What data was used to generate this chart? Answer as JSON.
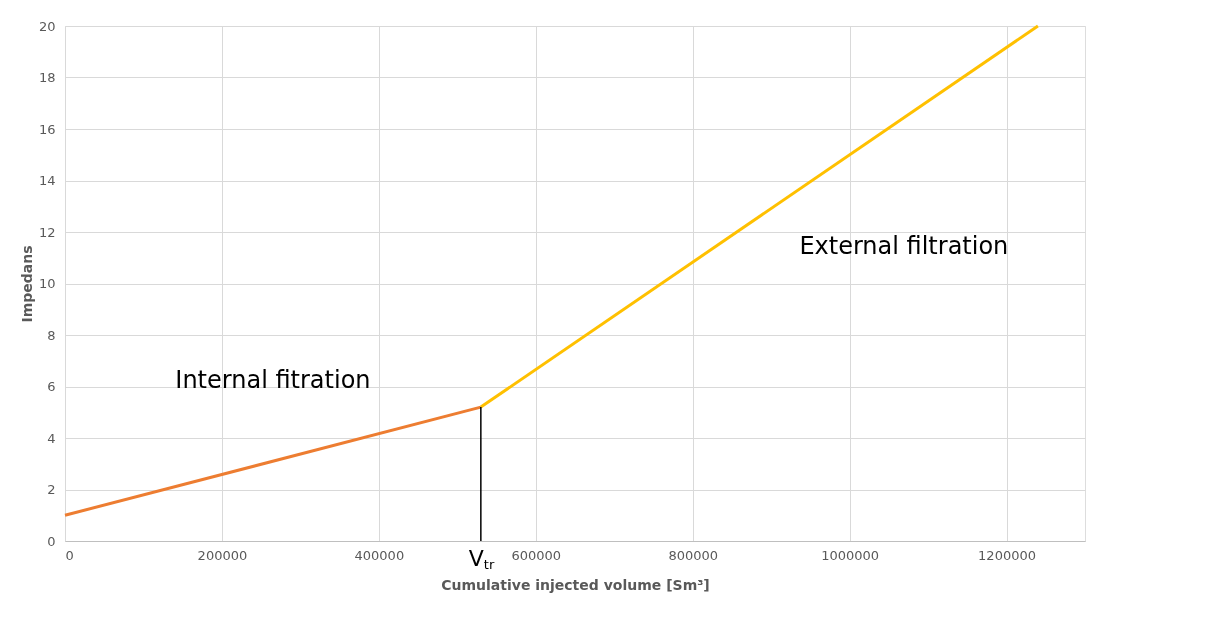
{
  "chart_data": {
    "type": "line",
    "xlabel": "Cumulative injected volume [Sm³]",
    "ylabel": "Impedans",
    "xlim": [
      0,
      1300000
    ],
    "xticks": [
      0,
      200000,
      400000,
      600000,
      800000,
      1000000,
      1200000
    ],
    "ylim": [
      0,
      20
    ],
    "yticks": [
      0,
      2,
      4,
      6,
      8,
      10,
      12,
      14,
      16,
      18,
      20
    ],
    "grid": true,
    "series": [
      {
        "name": "Internal fitration",
        "color": "#ed7d31",
        "x": [
          0,
          530000
        ],
        "values": [
          1,
          5.2
        ]
      },
      {
        "name": "External filtration",
        "color": "#ffc000",
        "x": [
          530000,
          1240000
        ],
        "values": [
          5.2,
          20
        ]
      },
      {
        "color": "#000000",
        "x": [
          530000,
          530000
        ],
        "values": [
          0,
          5.2
        ]
      }
    ],
    "annotations": [
      "V$_{tr}$"
    ]
  }
}
